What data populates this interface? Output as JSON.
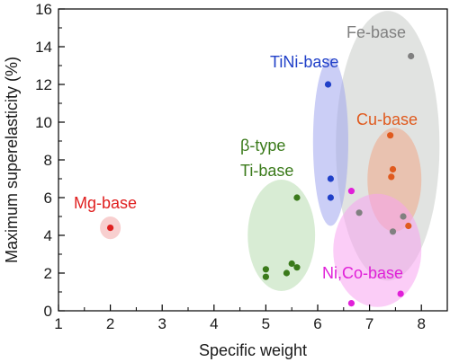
{
  "chart_data": {
    "type": "scatter",
    "xlabel": "Specific weight",
    "ylabel": "Maximum superelasticity (%)",
    "xlim": [
      1,
      8.5
    ],
    "ylim": [
      0,
      16
    ],
    "x_ticks": [
      1,
      2,
      3,
      4,
      5,
      6,
      7,
      8
    ],
    "y_ticks": [
      0,
      2,
      4,
      6,
      8,
      10,
      12,
      14,
      16
    ],
    "grid": false,
    "groups": [
      {
        "label_lines": [
          "Fe-base"
        ],
        "color": "#808080",
        "fill": "#c8ccc8",
        "ellipse": {
          "cx": 7.35,
          "cy": 8.75,
          "rx": 1.0,
          "ry": 7.15,
          "angle": 0
        },
        "points": [
          [
            7.8,
            13.5
          ],
          [
            6.8,
            5.2
          ],
          [
            7.65,
            5.0
          ],
          [
            7.45,
            4.2
          ]
        ]
      },
      {
        "label_lines": [
          "TiNi-base"
        ],
        "color": "#2040c8",
        "fill": "#a0a6ee",
        "ellipse": {
          "cx": 6.25,
          "cy": 8.95,
          "rx": 0.34,
          "ry": 4.45,
          "angle": 0
        },
        "points": [
          [
            6.2,
            12.0
          ],
          [
            6.25,
            7.0
          ],
          [
            6.25,
            6.0
          ]
        ]
      },
      {
        "label_lines": [
          "Cu-base"
        ],
        "color": "#e05a1e",
        "fill": "#f0a888",
        "ellipse": {
          "cx": 7.48,
          "cy": 6.95,
          "rx": 0.52,
          "ry": 2.75,
          "angle": 0
        },
        "points": [
          [
            7.4,
            9.3
          ],
          [
            7.45,
            7.5
          ],
          [
            7.42,
            7.1
          ],
          [
            7.75,
            4.5
          ]
        ]
      },
      {
        "label_lines": [
          "β-type",
          "Ti-base"
        ],
        "color": "#3a7a1a",
        "fill": "#b8dcb0",
        "ellipse": {
          "cx": 5.3,
          "cy": 4.0,
          "rx": 0.65,
          "ry": 2.95,
          "angle": 0
        },
        "points": [
          [
            5.6,
            6.0
          ],
          [
            5.0,
            2.2
          ],
          [
            5.0,
            1.8
          ],
          [
            5.5,
            2.5
          ],
          [
            5.6,
            2.3
          ],
          [
            5.4,
            2.0
          ]
        ]
      },
      {
        "label_lines": [
          "Ni,Co-base"
        ],
        "color": "#e020d8",
        "fill": "#f7a4f0",
        "ellipse": {
          "cx": 7.15,
          "cy": 3.2,
          "rx": 0.85,
          "ry": 3.0,
          "angle": 0
        },
        "points": [
          [
            6.65,
            6.35
          ],
          [
            6.65,
            0.4
          ],
          [
            7.6,
            0.9
          ]
        ]
      },
      {
        "label_lines": [
          "Mg-base"
        ],
        "color": "#e02020",
        "fill": "#f2a8a8",
        "ellipse": {
          "cx": 2.0,
          "cy": 4.4,
          "rx": 0.2,
          "ry": 0.6,
          "angle": 0
        },
        "points": [
          [
            2.0,
            4.4
          ]
        ]
      }
    ]
  }
}
